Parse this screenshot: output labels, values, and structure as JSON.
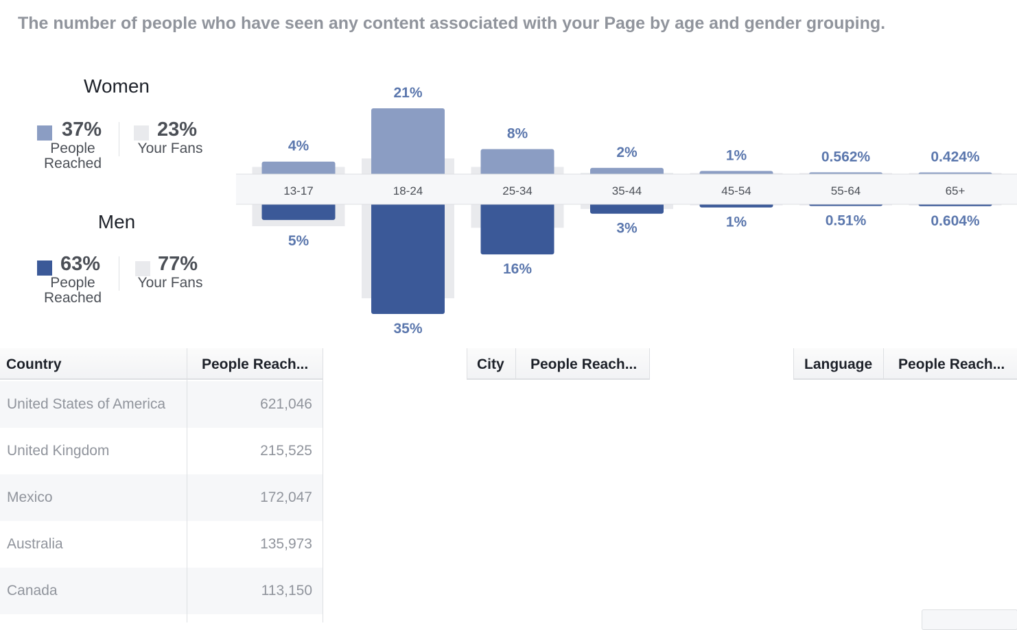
{
  "description": "The number of people who have seen any content associated with your Page by age and gender grouping.",
  "colors": {
    "women": "#8b9dc3",
    "men": "#3b5998",
    "fans_bg": "#e9eaed",
    "label": "#5b77ad"
  },
  "legend": {
    "women": {
      "title": "Women",
      "reached_pct": "37%",
      "reached_label_1": "People",
      "reached_label_2": "Reached",
      "fans_pct": "23%",
      "fans_label": "Your Fans"
    },
    "men": {
      "title": "Men",
      "reached_pct": "63%",
      "reached_label_1": "People",
      "reached_label_2": "Reached",
      "fans_pct": "77%",
      "fans_label": "Your Fans"
    }
  },
  "chart_data": {
    "type": "bar",
    "categories": [
      "13-17",
      "18-24",
      "25-34",
      "35-44",
      "45-54",
      "55-64",
      "65+"
    ],
    "series": [
      {
        "name": "Women",
        "values": [
          4,
          21,
          8,
          2,
          1,
          0.562,
          0.424
        ],
        "labels": [
          "4%",
          "21%",
          "8%",
          "2%",
          "1%",
          "0.562%",
          "0.424%"
        ]
      },
      {
        "name": "Men",
        "values": [
          5,
          35,
          16,
          3,
          1,
          0.51,
          0.604
        ],
        "labels": [
          "5%",
          "35%",
          "16%",
          "3%",
          "1%",
          "0.51%",
          "0.604%"
        ]
      }
    ],
    "fans_women": [
      2.3,
      5,
      2.3,
      0.4,
      0.1,
      0.05,
      0.03
    ],
    "fans_men": [
      7,
      30,
      7.5,
      1.5,
      0.2,
      0.1,
      0.06
    ]
  },
  "country_table": {
    "headers": [
      "Country",
      "People Reach..."
    ],
    "rows": [
      {
        "name": "United States of America",
        "value": "621,046"
      },
      {
        "name": "United Kingdom",
        "value": "215,525"
      },
      {
        "name": "Mexico",
        "value": "172,047"
      },
      {
        "name": "Australia",
        "value": "135,973"
      },
      {
        "name": "Canada",
        "value": "113,150"
      }
    ]
  },
  "city_table": {
    "headers": [
      "City",
      "People Reach..."
    ]
  },
  "language_table": {
    "headers": [
      "Language",
      "People Reach..."
    ]
  }
}
